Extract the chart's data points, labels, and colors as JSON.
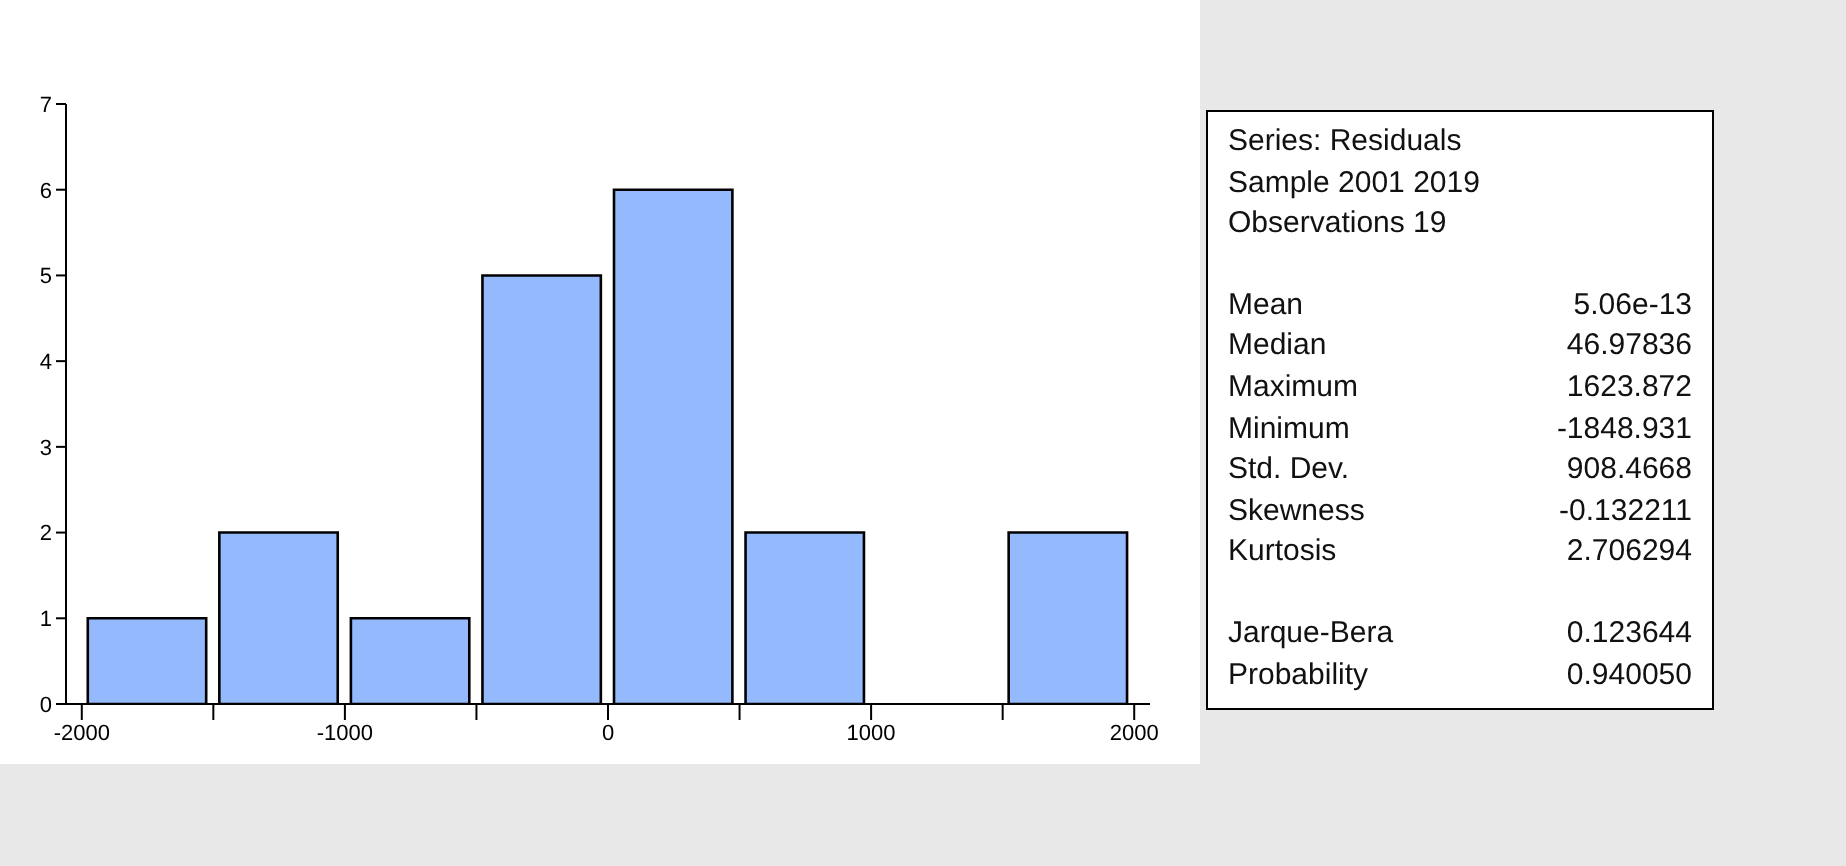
{
  "chart_data": {
    "type": "histogram",
    "bins": [
      -2000,
      -1500,
      -1000,
      -500,
      0,
      500,
      1000,
      1500,
      2000
    ],
    "values": [
      1,
      2,
      1,
      5,
      6,
      2,
      0,
      2
    ],
    "color": "#94b9fc",
    "xlim": [
      -2060,
      2060
    ],
    "xticks": [
      -2000,
      {
        "value": -1500,
        "label": null
      },
      -1000,
      {
        "value": -500,
        "label": null
      },
      0,
      {
        "value": 500,
        "label": null
      },
      1000,
      {
        "value": 1500,
        "label": null
      },
      2000
    ],
    "ylim": [
      0,
      7
    ],
    "yticks": [
      0,
      1,
      2,
      3,
      4,
      5,
      6,
      7
    ],
    "grid": false,
    "legend": false,
    "annotations": [
      "Series: Residuals",
      "Sample 2001 2019",
      "Observations 19",
      "Mean\t5.06e-13",
      "Median\t46.97836",
      "Maximum\t1623.872",
      "Minimum\t-1848.931",
      "Std. Dev.\t908.4668",
      "Skewness\t-0.132211",
      "Kurtosis\t2.706294",
      "Jarque-Bera\t0.123644",
      "Probability\t0.940050"
    ]
  }
}
